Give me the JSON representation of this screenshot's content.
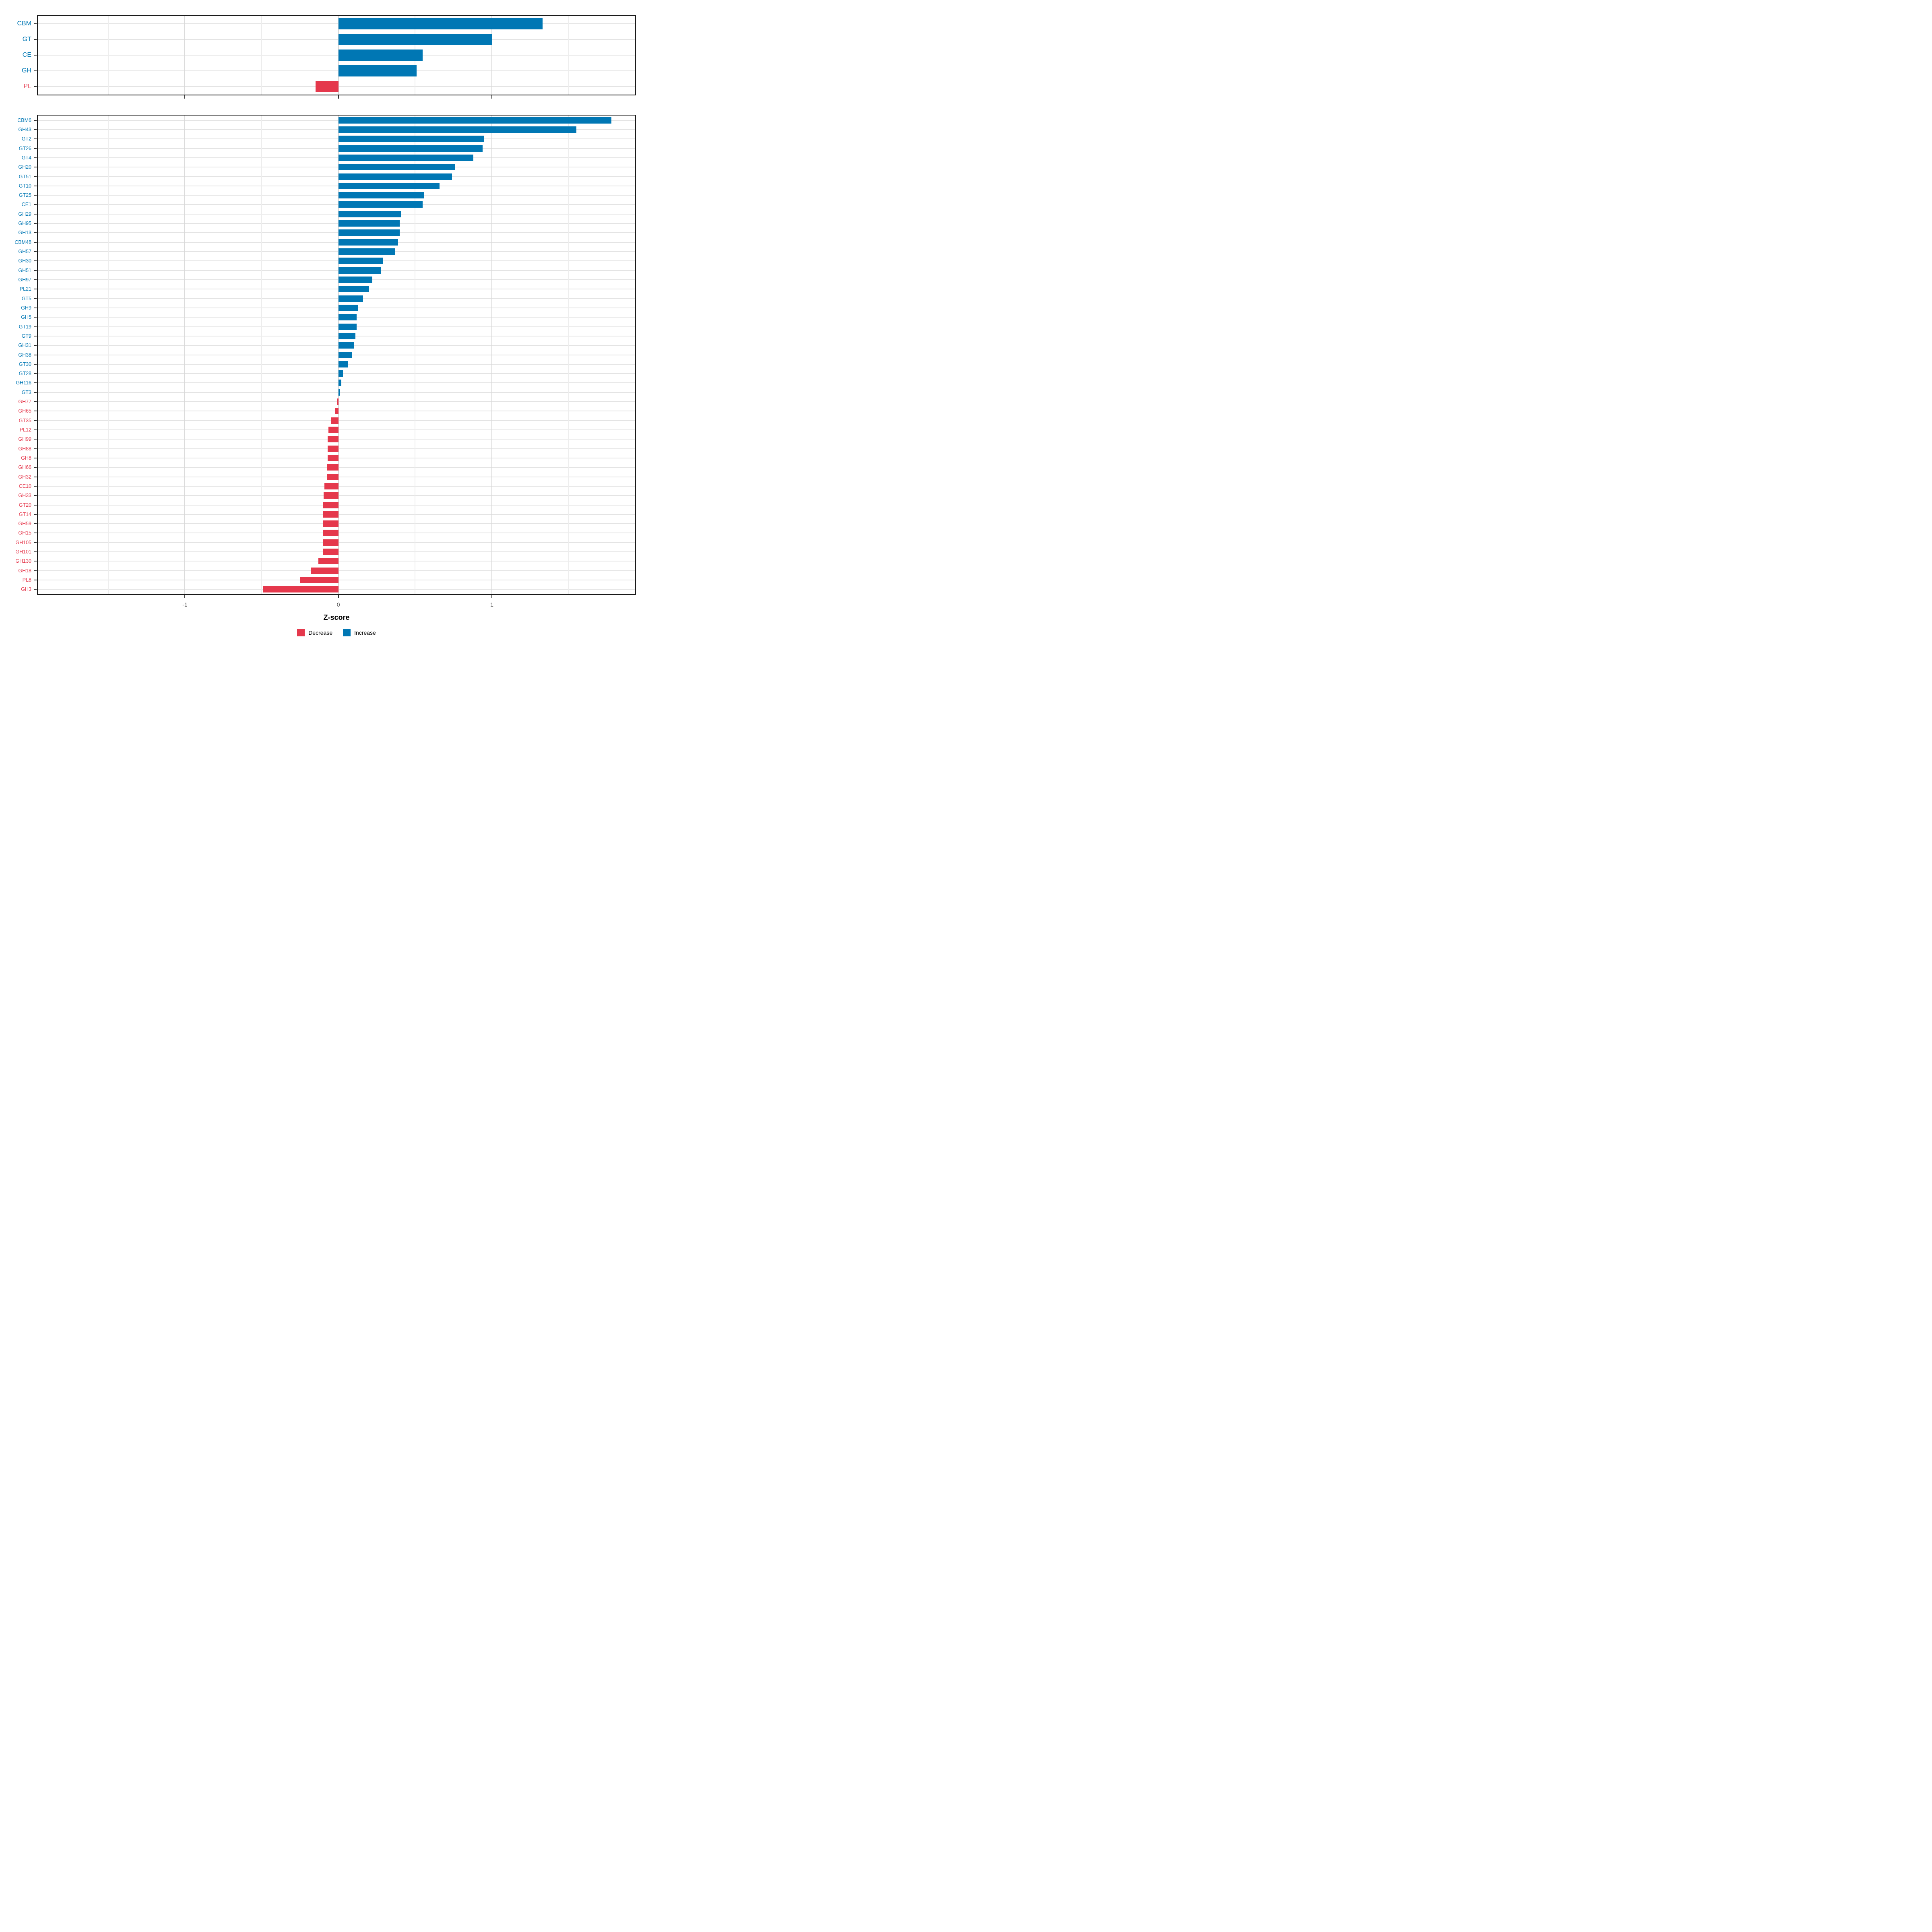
{
  "chart_data": {
    "type": "bar",
    "orientation": "horizontal",
    "title": "",
    "xlabel": "Z-score",
    "ylabel": "",
    "xlim": [
      -1.96,
      1.96
    ],
    "x_ticks": [
      "-1",
      "0",
      "1"
    ],
    "x_tick_values": [
      -1,
      0,
      1
    ],
    "minor_grid_values": [
      -1.5,
      -0.5,
      0.5,
      1.5
    ],
    "grid": "on",
    "legend_position": "bottom",
    "colors": {
      "increase": "#0077b4",
      "decrease": "#e5384c"
    },
    "legend": [
      {
        "label": "Decrease",
        "key": "decrease"
      },
      {
        "label": "Increase",
        "key": "increase"
      }
    ],
    "panels": [
      {
        "name": "cazyme-class",
        "rows": [
          {
            "label": "CBM",
            "value": 1.33
          },
          {
            "label": "GT",
            "value": 1.0
          },
          {
            "label": "CE",
            "value": 0.55
          },
          {
            "label": "GH",
            "value": 0.51
          },
          {
            "label": "PL",
            "value": -0.15
          }
        ]
      },
      {
        "name": "cazyme-family",
        "rows": [
          {
            "label": "CBM6",
            "value": 1.78
          },
          {
            "label": "GH43",
            "value": 1.55
          },
          {
            "label": "GT2",
            "value": 0.95
          },
          {
            "label": "GT26",
            "value": 0.94
          },
          {
            "label": "GT4",
            "value": 0.88
          },
          {
            "label": "GH20",
            "value": 0.76
          },
          {
            "label": "GT51",
            "value": 0.74
          },
          {
            "label": "GT10",
            "value": 0.66
          },
          {
            "label": "GT25",
            "value": 0.56
          },
          {
            "label": "CE1",
            "value": 0.55
          },
          {
            "label": "GH29",
            "value": 0.41
          },
          {
            "label": "GH95",
            "value": 0.4
          },
          {
            "label": "GH13",
            "value": 0.4
          },
          {
            "label": "CBM48",
            "value": 0.39
          },
          {
            "label": "GH57",
            "value": 0.37
          },
          {
            "label": "GH30",
            "value": 0.29
          },
          {
            "label": "GH51",
            "value": 0.28
          },
          {
            "label": "GH97",
            "value": 0.22
          },
          {
            "label": "PL21",
            "value": 0.2
          },
          {
            "label": "GT5",
            "value": 0.16
          },
          {
            "label": "GH9",
            "value": 0.13
          },
          {
            "label": "GH5",
            "value": 0.12
          },
          {
            "label": "GT19",
            "value": 0.12
          },
          {
            "label": "GT9",
            "value": 0.11
          },
          {
            "label": "GH31",
            "value": 0.1
          },
          {
            "label": "GH38",
            "value": 0.09
          },
          {
            "label": "GT30",
            "value": 0.06
          },
          {
            "label": "GT28",
            "value": 0.03
          },
          {
            "label": "GH116",
            "value": 0.02
          },
          {
            "label": "GT3",
            "value": 0.01
          },
          {
            "label": "GH77",
            "value": -0.01
          },
          {
            "label": "GH65",
            "value": -0.02
          },
          {
            "label": "GT35",
            "value": -0.05
          },
          {
            "label": "PL12",
            "value": -0.065
          },
          {
            "label": "GH99",
            "value": -0.07
          },
          {
            "label": "GH88",
            "value": -0.07
          },
          {
            "label": "GH8",
            "value": -0.07
          },
          {
            "label": "GH66",
            "value": -0.075
          },
          {
            "label": "GH32",
            "value": -0.075
          },
          {
            "label": "CE10",
            "value": -0.09
          },
          {
            "label": "GH33",
            "value": -0.095
          },
          {
            "label": "GT20",
            "value": -0.1
          },
          {
            "label": "GT14",
            "value": -0.1
          },
          {
            "label": "GH59",
            "value": -0.1
          },
          {
            "label": "GH15",
            "value": -0.1
          },
          {
            "label": "GH105",
            "value": -0.1
          },
          {
            "label": "GH101",
            "value": -0.1
          },
          {
            "label": "GH130",
            "value": -0.13
          },
          {
            "label": "GH18",
            "value": -0.18
          },
          {
            "label": "PL8",
            "value": -0.25
          },
          {
            "label": "GH3",
            "value": -0.49
          }
        ]
      }
    ]
  }
}
